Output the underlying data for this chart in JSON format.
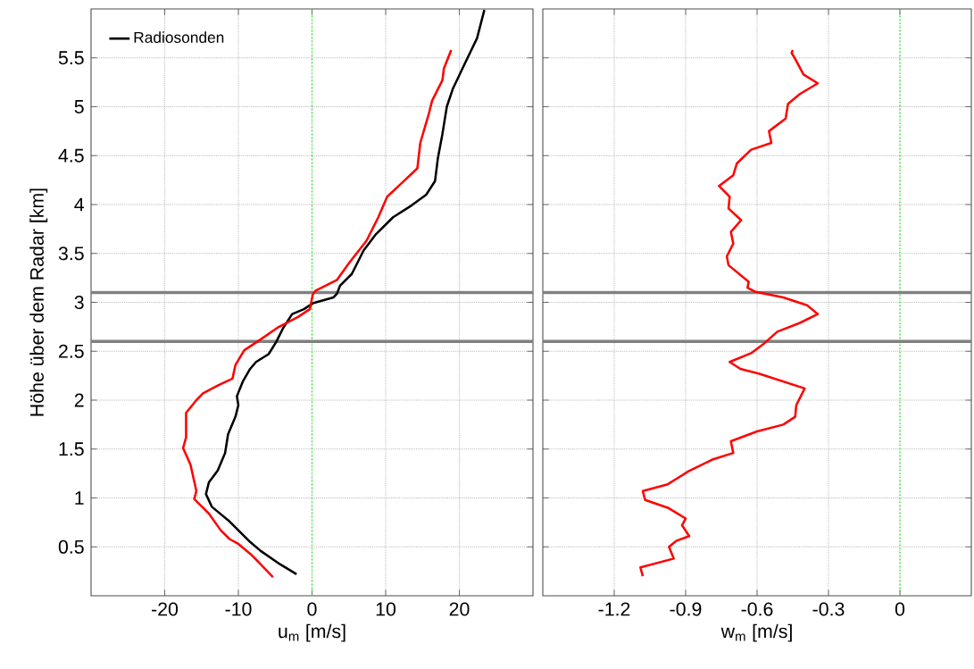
{
  "chart_data": [
    {
      "type": "line",
      "xlabel": "u$_{m}$ [m/s]",
      "ylabel": "Höhe über dem Radar [km]",
      "xlim": [
        -30,
        30
      ],
      "xticks": [
        -20,
        -10,
        0,
        10,
        20
      ],
      "ylim": [
        0,
        6
      ],
      "yticks": [
        0.5,
        1,
        1.5,
        2,
        2.5,
        3,
        3.5,
        4,
        4.5,
        5,
        5.5
      ],
      "grid": true,
      "legend": "top left",
      "series": [
        {
          "name": "Radiosonden",
          "color": "#000000",
          "x": [
            -2.1,
            -4.3,
            -7.0,
            -8.4,
            -11.2,
            -13.6,
            -14.4,
            -14.0,
            -12.8,
            -11.8,
            -11.4,
            -10.4,
            -10.0,
            -10.2,
            -9.4,
            -8.4,
            -7.6,
            -5.9,
            -4.9,
            -3.9,
            -2.7,
            -1.1,
            0.1,
            2.9,
            3.4,
            3.8,
            5.4,
            7.0,
            8.6,
            11.0,
            13.5,
            15.5,
            16.7,
            17.1,
            17.7,
            18.3,
            19.1,
            20.8,
            22.4,
            23.4
          ],
          "values": [
            0.22,
            0.32,
            0.46,
            0.55,
            0.76,
            0.91,
            1.04,
            1.16,
            1.28,
            1.46,
            1.65,
            1.83,
            1.95,
            2.04,
            2.19,
            2.32,
            2.39,
            2.47,
            2.59,
            2.74,
            2.88,
            2.93,
            2.99,
            3.05,
            3.09,
            3.17,
            3.29,
            3.53,
            3.69,
            3.87,
            3.99,
            4.1,
            4.24,
            4.48,
            4.72,
            5.0,
            5.18,
            5.45,
            5.7,
            5.99
          ]
        },
        {
          "color": "#ff0000",
          "x": [
            -5.3,
            -7.2,
            -8.4,
            -10.0,
            -11.2,
            -12.4,
            -14.0,
            -16.0,
            -15.7,
            -16.5,
            -17.5,
            -17.1,
            -17.1,
            -15.7,
            -14.8,
            -12.8,
            -10.8,
            -10.4,
            -9.2,
            -7.0,
            -4.7,
            -1.9,
            -0.3,
            0.1,
            0.5,
            3.4,
            5.0,
            7.4,
            9.0,
            10.2,
            11.9,
            14.3,
            14.7,
            15.9,
            16.3,
            17.7,
            17.9,
            18.9
          ],
          "values": [
            0.19,
            0.34,
            0.43,
            0.53,
            0.58,
            0.67,
            0.84,
            0.99,
            1.07,
            1.34,
            1.51,
            1.62,
            1.87,
            2.0,
            2.07,
            2.15,
            2.22,
            2.36,
            2.51,
            2.62,
            2.74,
            2.85,
            2.93,
            3.08,
            3.12,
            3.23,
            3.4,
            3.63,
            3.87,
            4.08,
            4.2,
            4.37,
            4.63,
            4.94,
            5.06,
            5.27,
            5.39,
            5.58
          ]
        }
      ],
      "ref_lines": [
        {
          "axis": "x",
          "value": 0,
          "color": "#00ff00",
          "line_style": "dotted"
        },
        {
          "axis": "y",
          "value": 3.1,
          "color": "#808080"
        },
        {
          "axis": "y",
          "value": 2.6,
          "color": "#808080"
        }
      ]
    },
    {
      "type": "line",
      "xlabel": "w$_{m}$ [m/s]",
      "xlim": [
        -1.5,
        0.3
      ],
      "xticks": [
        -1.2,
        -0.9,
        -0.6,
        -0.3,
        0
      ],
      "ylim": [
        0,
        6
      ],
      "yticks": [
        0.5,
        1,
        1.5,
        2,
        2.5,
        3,
        3.5,
        4,
        4.5,
        5,
        5.5
      ],
      "grid": true,
      "tick_labels": "x",
      "series": [
        {
          "color": "#ff0000",
          "x": [
            -1.08,
            -1.09,
            -0.95,
            -0.97,
            -0.94,
            -0.885,
            -0.915,
            -0.9,
            -0.975,
            -1.07,
            -1.08,
            -0.975,
            -0.89,
            -0.79,
            -0.7,
            -0.71,
            -0.6,
            -0.49,
            -0.44,
            -0.435,
            -0.4,
            -0.59,
            -0.67,
            -0.715,
            -0.625,
            -0.575,
            -0.515,
            -0.42,
            -0.345,
            -0.39,
            -0.49,
            -0.61,
            -0.64,
            -0.635,
            -0.72,
            -0.727,
            -0.7,
            -0.71,
            -0.667,
            -0.72,
            -0.715,
            -0.76,
            -0.7,
            -0.685,
            -0.625,
            -0.54,
            -0.55,
            -0.48,
            -0.47,
            -0.42,
            -0.345,
            -0.405,
            -0.44,
            -0.455,
            -0.45
          ],
          "values": [
            0.2,
            0.29,
            0.38,
            0.5,
            0.56,
            0.61,
            0.72,
            0.79,
            0.9,
            0.98,
            1.07,
            1.14,
            1.27,
            1.39,
            1.46,
            1.58,
            1.68,
            1.75,
            1.83,
            1.95,
            2.12,
            2.27,
            2.32,
            2.39,
            2.48,
            2.57,
            2.7,
            2.79,
            2.88,
            2.97,
            3.05,
            3.11,
            3.15,
            3.21,
            3.38,
            3.47,
            3.6,
            3.72,
            3.84,
            3.96,
            4.08,
            4.19,
            4.3,
            4.42,
            4.56,
            4.63,
            4.75,
            4.88,
            5.03,
            5.13,
            5.24,
            5.33,
            5.49,
            5.55,
            5.58
          ]
        }
      ],
      "ref_lines": [
        {
          "axis": "x",
          "value": 0,
          "color": "#00ff00",
          "line_style": "dotted"
        },
        {
          "axis": "y",
          "value": 3.1,
          "color": "#808080"
        },
        {
          "axis": "y",
          "value": 2.6,
          "color": "#808080"
        }
      ]
    }
  ]
}
